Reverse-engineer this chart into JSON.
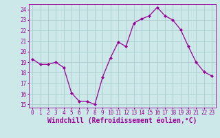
{
  "x": [
    0,
    1,
    2,
    3,
    4,
    5,
    6,
    7,
    8,
    9,
    10,
    11,
    12,
    13,
    14,
    15,
    16,
    17,
    18,
    19,
    20,
    21,
    22,
    23
  ],
  "y": [
    19.3,
    18.8,
    18.8,
    19.0,
    18.5,
    16.1,
    15.3,
    15.3,
    15.0,
    17.6,
    19.4,
    20.9,
    20.5,
    22.7,
    23.1,
    23.4,
    24.2,
    23.4,
    23.0,
    22.1,
    20.5,
    19.0,
    18.1,
    17.7
  ],
  "line_color": "#990099",
  "marker": "D",
  "marker_size": 2,
  "bg_color": "#cce8e8",
  "grid_color": "#aacccc",
  "xlabel": "Windchill (Refroidissement éolien,°C)",
  "xlabel_color": "#990099",
  "ylabel_ticks": [
    15,
    16,
    17,
    18,
    19,
    20,
    21,
    22,
    23,
    24
  ],
  "xtick_labels": [
    "0",
    "1",
    "2",
    "3",
    "4",
    "5",
    "6",
    "7",
    "8",
    "9",
    "10",
    "11",
    "12",
    "13",
    "14",
    "15",
    "16",
    "17",
    "18",
    "19",
    "20",
    "21",
    "22",
    "23"
  ],
  "ylim": [
    14.7,
    24.5
  ],
  "xlim": [
    -0.5,
    23.5
  ],
  "tick_color": "#990099",
  "tick_fontsize": 5.5,
  "xlabel_fontsize": 7.0,
  "linewidth": 0.9
}
